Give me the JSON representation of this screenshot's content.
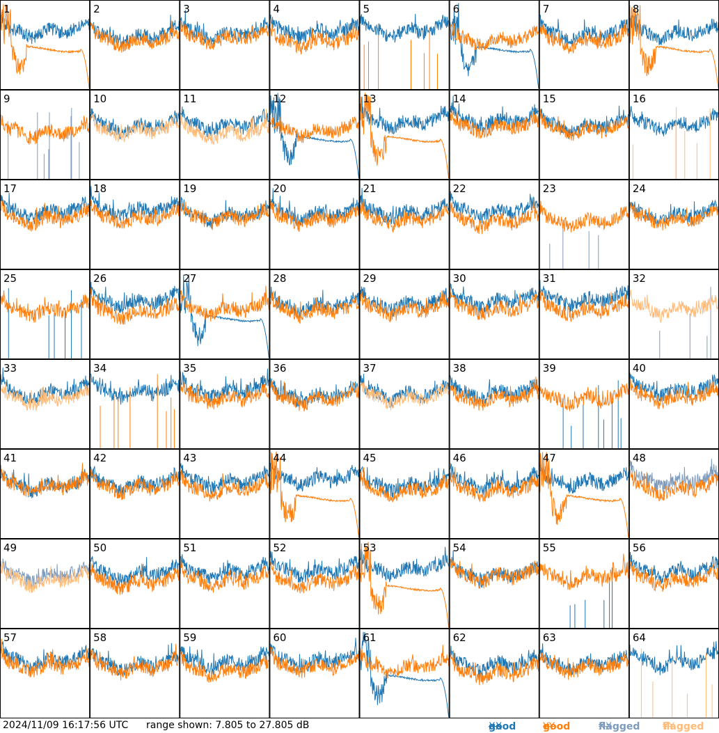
{
  "footer": {
    "timestamp": "2024/11/09 16:17:56 UTC",
    "range": "range shown: 7.805 to 27.805 dB"
  },
  "legend": {
    "good_xx_word": "good",
    "good_xx_pol": "XX",
    "good_yy_word": "good",
    "good_yy_pol": "YY",
    "flagged_xx_word": "flagged",
    "flagged_xx_pol": "XX",
    "flagged_yy_word": "flagged",
    "flagged_yy_pol": "YY"
  },
  "colors": {
    "good_xx": "#1f77b4",
    "good_yy": "#ff7f0e",
    "flagged_xx": "#7f9bbb",
    "flagged_yy": "#ffbb78"
  },
  "chart_data": {
    "type": "line",
    "grid_rows": 8,
    "grid_cols": 8,
    "ylim_db": [
      7.805,
      27.805
    ],
    "panels": [
      {
        "label": "1",
        "xx": "good",
        "yy": "good",
        "yy_shape": "dropout"
      },
      {
        "label": "2",
        "xx": "good",
        "yy": "good"
      },
      {
        "label": "3",
        "xx": "good",
        "yy": "good"
      },
      {
        "label": "4",
        "xx": "good",
        "yy": "good"
      },
      {
        "label": "5",
        "xx": "good",
        "yy": "good",
        "yy_shape": "spikes"
      },
      {
        "label": "6",
        "xx": "good",
        "xx_shape": "dropout",
        "yy": "good"
      },
      {
        "label": "7",
        "xx": "good",
        "yy": "good"
      },
      {
        "label": "8",
        "xx": "good",
        "yy": "good",
        "yy_shape": "dropout"
      },
      {
        "label": "9",
        "xx": "flagged",
        "xx_shape": "spikes",
        "yy": "good"
      },
      {
        "label": "10",
        "xx": "good",
        "yy": "flagged"
      },
      {
        "label": "11",
        "xx": "good",
        "yy": "flagged"
      },
      {
        "label": "12",
        "xx": "good",
        "xx_shape": "dropout",
        "yy": "good"
      },
      {
        "label": "13",
        "xx": "good",
        "yy": "good",
        "yy_shape": "dropout"
      },
      {
        "label": "14",
        "xx": "good",
        "yy": "good"
      },
      {
        "label": "15",
        "xx": "good",
        "yy": "good"
      },
      {
        "label": "16",
        "xx": "good",
        "yy": "flagged",
        "yy_shape": "spikes"
      },
      {
        "label": "17",
        "xx": "good",
        "yy": "good"
      },
      {
        "label": "18",
        "xx": "good",
        "yy": "good"
      },
      {
        "label": "19",
        "xx": "good",
        "yy": "good"
      },
      {
        "label": "20",
        "xx": "good",
        "yy": "good"
      },
      {
        "label": "21",
        "xx": "good",
        "yy": "good"
      },
      {
        "label": "22",
        "xx": "good",
        "yy": "good"
      },
      {
        "label": "23",
        "xx": "flagged",
        "xx_shape": "spikes",
        "yy": "good"
      },
      {
        "label": "24",
        "xx": "good",
        "yy": "good"
      },
      {
        "label": "25",
        "xx": "good",
        "xx_shape": "spikes",
        "yy": "good"
      },
      {
        "label": "26",
        "xx": "good",
        "yy": "good"
      },
      {
        "label": "27",
        "xx": "good",
        "xx_shape": "dropout",
        "yy": "good"
      },
      {
        "label": "28",
        "xx": "good",
        "yy": "good"
      },
      {
        "label": "29",
        "xx": "good",
        "yy": "good"
      },
      {
        "label": "30",
        "xx": "good",
        "yy": "good"
      },
      {
        "label": "31",
        "xx": "good",
        "yy": "good"
      },
      {
        "label": "32",
        "xx": "flagged",
        "xx_shape": "spikes",
        "yy": "flagged"
      },
      {
        "label": "33",
        "xx": "good",
        "yy": "flagged"
      },
      {
        "label": "34",
        "xx": "good",
        "yy": "good",
        "yy_shape": "spikes"
      },
      {
        "label": "35",
        "xx": "good",
        "yy": "good"
      },
      {
        "label": "36",
        "xx": "good",
        "yy": "good"
      },
      {
        "label": "37",
        "xx": "good",
        "yy": "flagged"
      },
      {
        "label": "38",
        "xx": "good",
        "yy": "good"
      },
      {
        "label": "39",
        "xx": "good",
        "xx_shape": "spikes",
        "yy": "good"
      },
      {
        "label": "40",
        "xx": "good",
        "yy": "good"
      },
      {
        "label": "41",
        "xx": "good",
        "yy": "good"
      },
      {
        "label": "42",
        "xx": "good",
        "yy": "good"
      },
      {
        "label": "43",
        "xx": "good",
        "yy": "good"
      },
      {
        "label": "44",
        "xx": "good",
        "yy": "good",
        "yy_shape": "dropout"
      },
      {
        "label": "45",
        "xx": "good",
        "yy": "good"
      },
      {
        "label": "46",
        "xx": "good",
        "yy": "good"
      },
      {
        "label": "47",
        "xx": "good",
        "yy": "good",
        "yy_shape": "dropout"
      },
      {
        "label": "48",
        "xx": "flagged",
        "yy": "good"
      },
      {
        "label": "49",
        "xx": "flagged",
        "yy": "flagged"
      },
      {
        "label": "50",
        "xx": "good",
        "yy": "good"
      },
      {
        "label": "51",
        "xx": "good",
        "yy": "good"
      },
      {
        "label": "52",
        "xx": "good",
        "yy": "good"
      },
      {
        "label": "53",
        "xx": "good",
        "yy": "good",
        "yy_shape": "dropout"
      },
      {
        "label": "54",
        "xx": "good",
        "yy": "good"
      },
      {
        "label": "55",
        "xx": "good",
        "xx_shape": "spikes",
        "yy": "good"
      },
      {
        "label": "56",
        "xx": "good",
        "yy": "good"
      },
      {
        "label": "57",
        "xx": "good",
        "yy": "good"
      },
      {
        "label": "58",
        "xx": "good",
        "yy": "good"
      },
      {
        "label": "59",
        "xx": "good",
        "yy": "good"
      },
      {
        "label": "60",
        "xx": "good",
        "yy": "good"
      },
      {
        "label": "61",
        "xx": "good",
        "xx_shape": "dropout",
        "yy": "good"
      },
      {
        "label": "62",
        "xx": "good",
        "yy": "good"
      },
      {
        "label": "63",
        "xx": "good",
        "yy": "good"
      },
      {
        "label": "64",
        "xx": "good",
        "yy": "flagged",
        "yy_shape": "spikes"
      }
    ]
  }
}
